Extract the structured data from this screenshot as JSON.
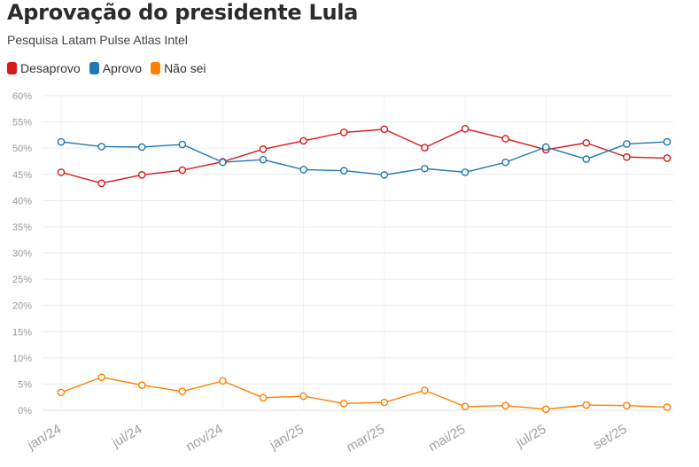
{
  "chart_data": {
    "type": "line",
    "title": "Aprovação do presidente Lula",
    "subtitle": "Pesquisa Latam Pulse Atlas Intel",
    "ylim": [
      0,
      60
    ],
    "y_ticks": [
      0,
      5,
      10,
      15,
      20,
      25,
      30,
      35,
      40,
      45,
      50,
      55,
      60
    ],
    "y_unit": "%",
    "x_tick_labels": [
      "jan/24",
      "jul/24",
      "nov/24",
      "jan/25",
      "mar/25",
      "mai/25",
      "jul/25",
      "set/25"
    ],
    "x_tick_indices": [
      0,
      2,
      4,
      6,
      8,
      10,
      12,
      14
    ],
    "grid": true,
    "legend_position": "top-left",
    "series": [
      {
        "name": "Desaprovo",
        "color": "#d7191c",
        "values": [
          45.4,
          43.3,
          44.9,
          45.8,
          47.4,
          49.8,
          51.4,
          53.0,
          53.6,
          50.1,
          53.7,
          51.8,
          49.7,
          51.0,
          48.3,
          48.1
        ]
      },
      {
        "name": "Aprovo",
        "color": "#1f78b4",
        "values": [
          51.2,
          50.3,
          50.2,
          50.7,
          47.3,
          47.8,
          45.9,
          45.7,
          44.9,
          46.1,
          45.4,
          47.3,
          50.2,
          47.9,
          50.8,
          51.2
        ]
      },
      {
        "name": "Não sei",
        "color": "#ff7f00",
        "values": [
          3.4,
          6.3,
          4.8,
          3.6,
          5.6,
          2.4,
          2.7,
          1.3,
          1.5,
          3.8,
          0.7,
          0.9,
          0.2,
          1.0,
          0.9,
          0.6
        ]
      }
    ]
  }
}
